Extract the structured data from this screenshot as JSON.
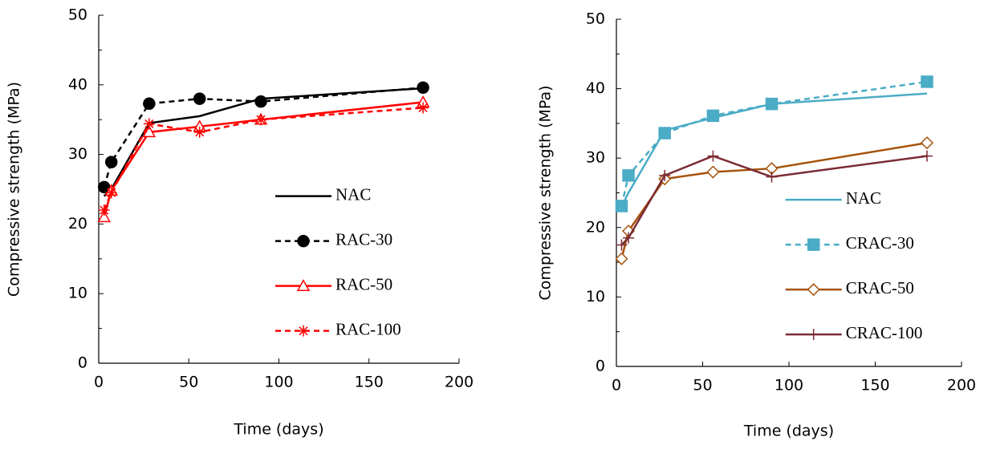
{
  "chart_data": [
    {
      "type": "line",
      "x_label": "Time (days)",
      "y_label": "Compressive strength (MPa)",
      "xlim": [
        0,
        200
      ],
      "xticks": [
        0,
        50,
        100,
        150,
        200
      ],
      "ylim": [
        0,
        50
      ],
      "yticks": [
        0,
        10,
        20,
        30,
        40,
        50
      ],
      "legend": "lower right",
      "series": [
        {
          "name": "NAC",
          "color": "#000000",
          "dash": false,
          "marker": "none",
          "x": [
            3,
            7,
            28,
            56,
            90,
            180
          ],
          "values": [
            24,
            25,
            34.5,
            35.5,
            38,
            39.5
          ]
        },
        {
          "name": "RAC-30",
          "color": "#000000",
          "dash": true,
          "marker": "circle",
          "x": [
            3,
            7,
            28,
            56,
            90,
            180
          ],
          "values": [
            25.3,
            28.9,
            37.3,
            38,
            37.6,
            39.6
          ]
        },
        {
          "name": "RAC-50",
          "color": "#ff0000",
          "dash": false,
          "marker": "triangle",
          "x": [
            3,
            7,
            28,
            56,
            90,
            180
          ],
          "values": [
            21,
            24.8,
            33.2,
            34,
            35,
            37.5
          ]
        },
        {
          "name": "RAC-100",
          "color": "#ff0000",
          "dash": true,
          "marker": "asterisk",
          "x": [
            3,
            7,
            28,
            56,
            90,
            180
          ],
          "values": [
            22,
            24.5,
            34.4,
            33.2,
            35,
            36.7
          ]
        }
      ]
    },
    {
      "type": "line",
      "x_label": "Time (days)",
      "y_label": "Compressive strength (MPa)",
      "xlim": [
        0,
        200
      ],
      "xticks": [
        0,
        50,
        100,
        150,
        200
      ],
      "ylim": [
        0,
        50
      ],
      "yticks": [
        0,
        10,
        20,
        30,
        40,
        50
      ],
      "legend": "lower right",
      "series": [
        {
          "name": "NAC",
          "color": "#4bacc6",
          "dash": false,
          "marker": "none",
          "x": [
            3,
            7,
            28,
            56,
            90,
            180
          ],
          "values": [
            23,
            25,
            34,
            35.8,
            37.8,
            39.3
          ]
        },
        {
          "name": "CRAC-30",
          "color": "#4bacc6",
          "dash": true,
          "marker": "square",
          "x": [
            3,
            7,
            28,
            56,
            90,
            180
          ],
          "values": [
            23.1,
            27.5,
            33.6,
            36.1,
            37.8,
            41
          ]
        },
        {
          "name": "CRAC-50",
          "color": "#a5520c",
          "dash": false,
          "marker": "diamond",
          "x": [
            3,
            7,
            28,
            56,
            90,
            180
          ],
          "values": [
            15.5,
            19.5,
            27,
            28,
            28.5,
            32.2
          ]
        },
        {
          "name": "CRAC-100",
          "color": "#7b2c33",
          "dash": false,
          "marker": "plus",
          "x": [
            3,
            7,
            28,
            56,
            90,
            180
          ],
          "values": [
            17.5,
            18.5,
            27.5,
            30.3,
            27.3,
            30.3
          ]
        }
      ]
    }
  ]
}
